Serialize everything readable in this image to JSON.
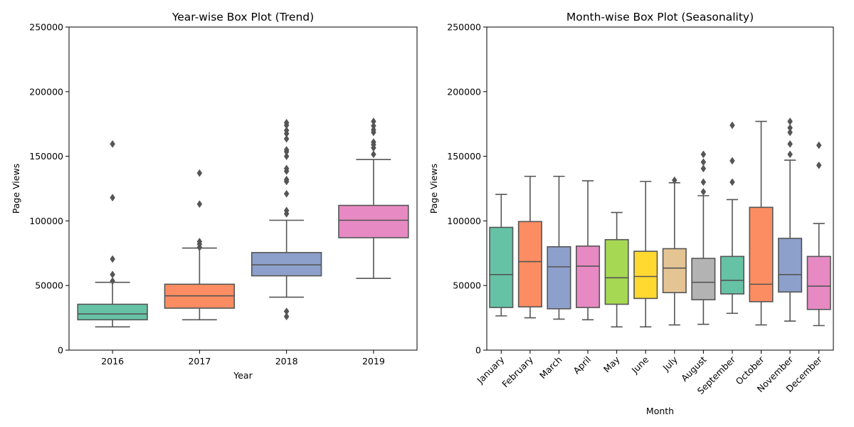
{
  "chart_data": [
    {
      "type": "box",
      "title": "Year-wise Box Plot (Trend)",
      "xlabel": "Year",
      "ylabel": "Page Views",
      "ylim": [
        0,
        250000
      ],
      "yticks": [
        "0",
        "50000",
        "100000",
        "150000",
        "200000",
        "250000"
      ],
      "yticks_values": [
        0,
        50000,
        100000,
        150000,
        200000,
        250000
      ],
      "grid": false,
      "xtick_rotation": 0,
      "boxes": [
        {
          "label": "2016",
          "color": "#66c2a5",
          "whisker_low": 18000,
          "q1": 23500,
          "median": 28000,
          "q3": 35500,
          "whisker_high": 52500,
          "outliers": [
            53500,
            58500,
            70500,
            118000,
            159500
          ]
        },
        {
          "label": "2017",
          "color": "#fc8d62",
          "whisker_low": 23500,
          "q1": 32500,
          "median": 42000,
          "q3": 51000,
          "whisker_high": 79000,
          "outliers": [
            79500,
            82000,
            84000,
            113000,
            137000
          ]
        },
        {
          "label": "2018",
          "color": "#8da0cb",
          "whisker_low": 41000,
          "q1": 57500,
          "median": 66000,
          "q3": 75500,
          "whisker_high": 100500,
          "outliers": [
            26000,
            30000,
            105500,
            108000,
            121000,
            130500,
            132000,
            138500,
            140500,
            150000,
            153500,
            155000,
            163500,
            167500,
            170000,
            174000,
            176000
          ]
        },
        {
          "label": "2019",
          "color": "#e78ac3",
          "whisker_low": 55500,
          "q1": 87000,
          "median": 100500,
          "q3": 112000,
          "whisker_high": 147500,
          "outliers": [
            151500,
            156500,
            159000,
            161000,
            168500,
            170500,
            173500,
            177000
          ]
        }
      ]
    },
    {
      "type": "box",
      "title": "Month-wise Box Plot (Seasonality)",
      "xlabel": "Month",
      "ylabel": "Page Views",
      "ylim": [
        0,
        250000
      ],
      "yticks": [
        "0",
        "50000",
        "100000",
        "150000",
        "200000",
        "250000"
      ],
      "yticks_values": [
        0,
        50000,
        100000,
        150000,
        200000,
        250000
      ],
      "grid": false,
      "xtick_rotation": -45,
      "boxes": [
        {
          "label": "January",
          "color": "#66c2a5",
          "whisker_low": 26500,
          "q1": 33000,
          "median": 58500,
          "q3": 95000,
          "whisker_high": 120500,
          "outliers": []
        },
        {
          "label": "February",
          "color": "#fc8d62",
          "whisker_low": 25000,
          "q1": 33500,
          "median": 68500,
          "q3": 99500,
          "whisker_high": 134500,
          "outliers": []
        },
        {
          "label": "March",
          "color": "#8da0cb",
          "whisker_low": 24000,
          "q1": 32000,
          "median": 64500,
          "q3": 80000,
          "whisker_high": 134500,
          "outliers": []
        },
        {
          "label": "April",
          "color": "#e78ac3",
          "whisker_low": 23500,
          "q1": 33000,
          "median": 65000,
          "q3": 80500,
          "whisker_high": 131000,
          "outliers": []
        },
        {
          "label": "May",
          "color": "#a6d854",
          "whisker_low": 18000,
          "q1": 35500,
          "median": 56000,
          "q3": 85500,
          "whisker_high": 106500,
          "outliers": []
        },
        {
          "label": "June",
          "color": "#ffd92f",
          "whisker_low": 18000,
          "q1": 40000,
          "median": 57000,
          "q3": 76500,
          "whisker_high": 130500,
          "outliers": []
        },
        {
          "label": "July",
          "color": "#e5c494",
          "whisker_low": 19500,
          "q1": 44500,
          "median": 63500,
          "q3": 78500,
          "whisker_high": 129500,
          "outliers": [
            131500
          ]
        },
        {
          "label": "August",
          "color": "#b3b3b3",
          "whisker_low": 20000,
          "q1": 39000,
          "median": 52500,
          "q3": 71000,
          "whisker_high": 119500,
          "outliers": [
            122500,
            130000,
            140500,
            145500,
            151500
          ]
        },
        {
          "label": "September",
          "color": "#66c2a5",
          "whisker_low": 28500,
          "q1": 43500,
          "median": 54000,
          "q3": 72500,
          "whisker_high": 116500,
          "outliers": [
            130000,
            146500,
            174000
          ]
        },
        {
          "label": "October",
          "color": "#fc8d62",
          "whisker_low": 19500,
          "q1": 37500,
          "median": 51000,
          "q3": 110500,
          "whisker_high": 177000,
          "outliers": []
        },
        {
          "label": "November",
          "color": "#8da0cb",
          "whisker_low": 22500,
          "q1": 45000,
          "median": 58500,
          "q3": 86500,
          "whisker_high": 147000,
          "outliers": [
            151500,
            159500,
            168500,
            172000,
            177000
          ]
        },
        {
          "label": "December",
          "color": "#e78ac3",
          "whisker_low": 19000,
          "q1": 31500,
          "median": 49500,
          "q3": 72500,
          "whisker_high": 98000,
          "outliers": [
            143000,
            158500
          ]
        }
      ]
    }
  ]
}
